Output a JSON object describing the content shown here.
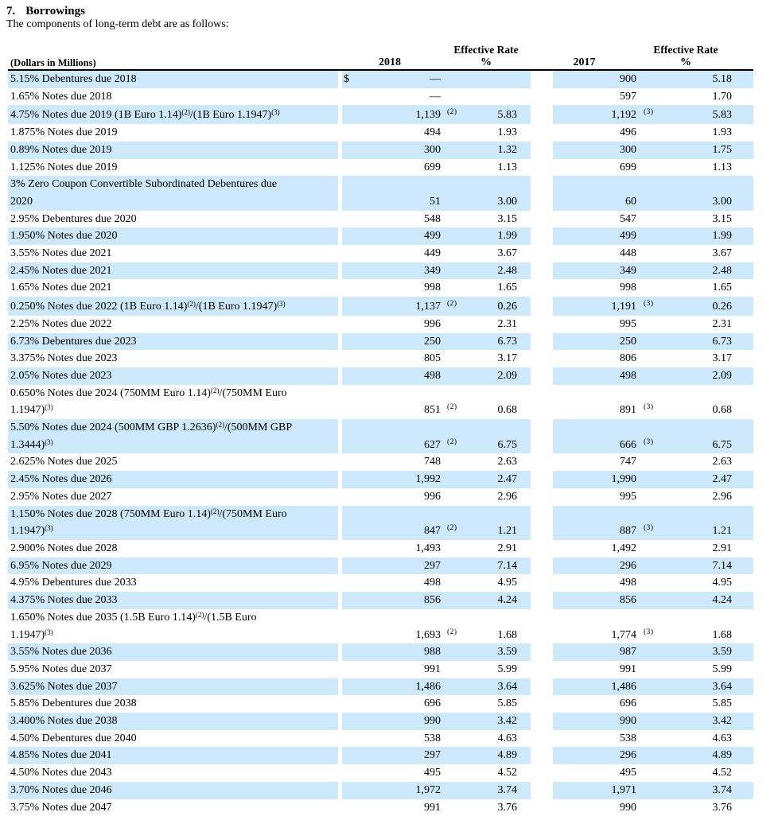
{
  "page": {
    "highlight_color": "#cde9fb",
    "rule_color": "#000000"
  },
  "document": {
    "section_number": "7.",
    "section_title": "Borrowings",
    "intro": "The components of long-term debt are as follows:"
  },
  "table": {
    "headers": {
      "dollars_label": "(Dollars in Millions)",
      "year_2018": "2018",
      "effective_rate_line1": "Effective Rate",
      "effective_rate_line2": "%",
      "year_2017": "2017"
    },
    "rows": [
      {
        "label": "5.15% Debentures due 2018",
        "currency": "$",
        "v2018": "—",
        "fn2018": "",
        "r2018": "",
        "v2017": "900",
        "fn2017": "",
        "r2017": "5.18"
      },
      {
        "label": "1.65% Notes due 2018",
        "currency": "",
        "v2018": "—",
        "fn2018": "",
        "r2018": "",
        "v2017": "597",
        "fn2017": "",
        "r2017": "1.70"
      },
      {
        "label": "4.75% Notes due 2019 (1B Euro 1.14){2}/(1B Euro 1.1947){3}",
        "currency": "",
        "v2018": "1,139",
        "fn2018": "(2)",
        "r2018": "5.83",
        "v2017": "1,192",
        "fn2017": "(3)",
        "r2017": "5.83"
      },
      {
        "label": "1.875% Notes due 2019",
        "currency": "",
        "v2018": "494",
        "fn2018": "",
        "r2018": "1.93",
        "v2017": "496",
        "fn2017": "",
        "r2017": "1.93"
      },
      {
        "label": "0.89% Notes due 2019",
        "currency": "",
        "v2018": "300",
        "fn2018": "",
        "r2018": "1.32",
        "v2017": "300",
        "fn2017": "",
        "r2017": "1.75"
      },
      {
        "label": "1.125% Notes due 2019",
        "currency": "",
        "v2018": "699",
        "fn2018": "",
        "r2018": "1.13",
        "v2017": "699",
        "fn2017": "",
        "r2017": "1.13"
      },
      {
        "label": "3% Zero Coupon Convertible Subordinated Debentures due\n2020",
        "currency": "",
        "v2018": "51",
        "fn2018": "",
        "r2018": "3.00",
        "v2017": "60",
        "fn2017": "",
        "r2017": "3.00"
      },
      {
        "label": "2.95% Debentures due 2020",
        "currency": "",
        "v2018": "548",
        "fn2018": "",
        "r2018": "3.15",
        "v2017": "547",
        "fn2017": "",
        "r2017": "3.15"
      },
      {
        "label": "1.950% Notes due 2020",
        "currency": "",
        "v2018": "499",
        "fn2018": "",
        "r2018": "1.99",
        "v2017": "499",
        "fn2017": "",
        "r2017": "1.99"
      },
      {
        "label": "3.55% Notes due 2021",
        "currency": "",
        "v2018": "449",
        "fn2018": "",
        "r2018": "3.67",
        "v2017": "448",
        "fn2017": "",
        "r2017": "3.67"
      },
      {
        "label": "2.45% Notes due 2021",
        "currency": "",
        "v2018": "349",
        "fn2018": "",
        "r2018": "2.48",
        "v2017": "349",
        "fn2017": "",
        "r2017": "2.48"
      },
      {
        "label": "1.65% Notes due 2021",
        "currency": "",
        "v2018": "998",
        "fn2018": "",
        "r2018": "1.65",
        "v2017": "998",
        "fn2017": "",
        "r2017": "1.65"
      },
      {
        "label": "0.250% Notes due 2022 (1B Euro 1.14){2}/(1B Euro 1.1947){3}",
        "currency": "",
        "v2018": "1,137",
        "fn2018": "(2)",
        "r2018": "0.26",
        "v2017": "1,191",
        "fn2017": "(3)",
        "r2017": "0.26"
      },
      {
        "label": "2.25% Notes due 2022",
        "currency": "",
        "v2018": "996",
        "fn2018": "",
        "r2018": "2.31",
        "v2017": "995",
        "fn2017": "",
        "r2017": "2.31"
      },
      {
        "label": "6.73% Debentures due 2023",
        "currency": "",
        "v2018": "250",
        "fn2018": "",
        "r2018": "6.73",
        "v2017": "250",
        "fn2017": "",
        "r2017": "6.73"
      },
      {
        "label": "3.375% Notes due 2023",
        "currency": "",
        "v2018": "805",
        "fn2018": "",
        "r2018": "3.17",
        "v2017": "806",
        "fn2017": "",
        "r2017": "3.17"
      },
      {
        "label": "2.05% Notes due 2023",
        "currency": "",
        "v2018": "498",
        "fn2018": "",
        "r2018": "2.09",
        "v2017": "498",
        "fn2017": "",
        "r2017": "2.09"
      },
      {
        "label": "0.650% Notes due 2024 (750MM Euro 1.14){2}/(750MM Euro\n1.1947){3}",
        "currency": "",
        "v2018": "851",
        "fn2018": "(2)",
        "r2018": "0.68",
        "v2017": "891",
        "fn2017": "(3)",
        "r2017": "0.68"
      },
      {
        "label": "5.50% Notes due 2024 (500MM GBP 1.2636){2}/(500MM GBP\n1.3444){3}",
        "currency": "",
        "v2018": "627",
        "fn2018": "(2)",
        "r2018": "6.75",
        "v2017": "666",
        "fn2017": "(3)",
        "r2017": "6.75"
      },
      {
        "label": "2.625% Notes due 2025",
        "currency": "",
        "v2018": "748",
        "fn2018": "",
        "r2018": "2.63",
        "v2017": "747",
        "fn2017": "",
        "r2017": "2.63"
      },
      {
        "label": "2.45% Notes due 2026",
        "currency": "",
        "v2018": "1,992",
        "fn2018": "",
        "r2018": "2.47",
        "v2017": "1,990",
        "fn2017": "",
        "r2017": "2.47"
      },
      {
        "label": "2.95% Notes due 2027",
        "currency": "",
        "v2018": "996",
        "fn2018": "",
        "r2018": "2.96",
        "v2017": "995",
        "fn2017": "",
        "r2017": "2.96"
      },
      {
        "label": "1.150% Notes due 2028 (750MM Euro 1.14){2}/(750MM Euro\n1.1947){3}",
        "currency": "",
        "v2018": "847",
        "fn2018": "(2)",
        "r2018": "1.21",
        "v2017": "887",
        "fn2017": "(3)",
        "r2017": "1.21"
      },
      {
        "label": "2.900% Notes due 2028",
        "currency": "",
        "v2018": "1,493",
        "fn2018": "",
        "r2018": "2.91",
        "v2017": "1,492",
        "fn2017": "",
        "r2017": "2.91"
      },
      {
        "label": "6.95% Notes due 2029",
        "currency": "",
        "v2018": "297",
        "fn2018": "",
        "r2018": "7.14",
        "v2017": "296",
        "fn2017": "",
        "r2017": "7.14"
      },
      {
        "label": "4.95% Debentures due 2033",
        "currency": "",
        "v2018": "498",
        "fn2018": "",
        "r2018": "4.95",
        "v2017": "498",
        "fn2017": "",
        "r2017": "4.95"
      },
      {
        "label": "4.375% Notes due 2033",
        "currency": "",
        "v2018": "856",
        "fn2018": "",
        "r2018": "4.24",
        "v2017": "856",
        "fn2017": "",
        "r2017": "4.24"
      },
      {
        "label": "1.650% Notes due 2035 (1.5B Euro 1.14){2}/(1.5B Euro\n1.1947){3}",
        "currency": "",
        "v2018": "1,693",
        "fn2018": "(2)",
        "r2018": "1.68",
        "v2017": "1,774",
        "fn2017": "(3)",
        "r2017": "1.68"
      },
      {
        "label": "3.55% Notes due 2036",
        "currency": "",
        "v2018": "988",
        "fn2018": "",
        "r2018": "3.59",
        "v2017": "987",
        "fn2017": "",
        "r2017": "3.59"
      },
      {
        "label": "5.95% Notes due 2037",
        "currency": "",
        "v2018": "991",
        "fn2018": "",
        "r2018": "5.99",
        "v2017": "991",
        "fn2017": "",
        "r2017": "5.99"
      },
      {
        "label": "3.625% Notes due 2037",
        "currency": "",
        "v2018": "1,486",
        "fn2018": "",
        "r2018": "3.64",
        "v2017": "1,486",
        "fn2017": "",
        "r2017": "3.64"
      },
      {
        "label": "5.85% Debentures due 2038",
        "currency": "",
        "v2018": "696",
        "fn2018": "",
        "r2018": "5.85",
        "v2017": "696",
        "fn2017": "",
        "r2017": "5.85"
      },
      {
        "label": "3.400% Notes due 2038",
        "currency": "",
        "v2018": "990",
        "fn2018": "",
        "r2018": "3.42",
        "v2017": "990",
        "fn2017": "",
        "r2017": "3.42"
      },
      {
        "label": "4.50% Debentures due 2040",
        "currency": "",
        "v2018": "538",
        "fn2018": "",
        "r2018": "4.63",
        "v2017": "538",
        "fn2017": "",
        "r2017": "4.63"
      },
      {
        "label": "4.85% Notes due 2041",
        "currency": "",
        "v2018": "297",
        "fn2018": "",
        "r2018": "4.89",
        "v2017": "296",
        "fn2017": "",
        "r2017": "4.89"
      },
      {
        "label": "4.50% Notes due 2043",
        "currency": "",
        "v2018": "495",
        "fn2018": "",
        "r2018": "4.52",
        "v2017": "495",
        "fn2017": "",
        "r2017": "4.52"
      },
      {
        "label": "3.70% Notes due 2046",
        "currency": "",
        "v2018": "1,972",
        "fn2018": "",
        "r2018": "3.74",
        "v2017": "1,971",
        "fn2017": "",
        "r2017": "3.74"
      },
      {
        "label": "3.75% Notes due 2047",
        "currency": "",
        "v2018": "991",
        "fn2018": "",
        "r2018": "3.76",
        "v2017": "990",
        "fn2017": "",
        "r2017": "3.76"
      }
    ]
  }
}
